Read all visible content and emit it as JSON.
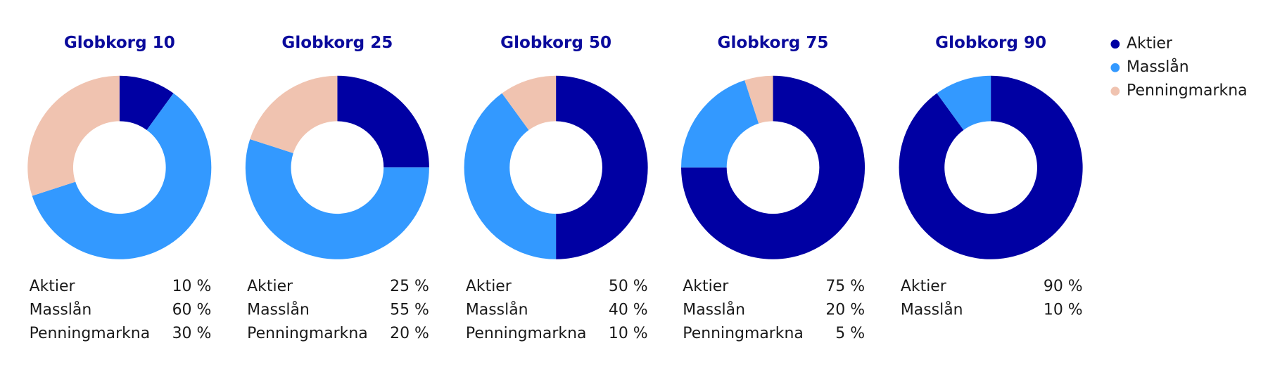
{
  "chart_data": [
    {
      "type": "pie",
      "title": "Globkorg 10",
      "categories": [
        "Aktier",
        "Masslån",
        "Penningmarkna"
      ],
      "values": [
        10,
        60,
        30
      ],
      "value_labels": [
        "10 %",
        "60 %",
        "30 %"
      ],
      "colors": [
        "#0000a3",
        "#3399ff",
        "#f0c3b0"
      ],
      "donut": true
    },
    {
      "type": "pie",
      "title": "Globkorg 25",
      "categories": [
        "Aktier",
        "Masslån",
        "Penningmarkna"
      ],
      "values": [
        25,
        55,
        20
      ],
      "value_labels": [
        "25 %",
        "55 %",
        "20 %"
      ],
      "colors": [
        "#0000a3",
        "#3399ff",
        "#f0c3b0"
      ],
      "donut": true
    },
    {
      "type": "pie",
      "title": "Globkorg 50",
      "categories": [
        "Aktier",
        "Masslån",
        "Penningmarkna"
      ],
      "values": [
        50,
        40,
        10
      ],
      "value_labels": [
        "50 %",
        "40 %",
        "10 %"
      ],
      "colors": [
        "#0000a3",
        "#3399ff",
        "#f0c3b0"
      ],
      "donut": true
    },
    {
      "type": "pie",
      "title": "Globkorg 75",
      "categories": [
        "Aktier",
        "Masslån",
        "Penningmarkna"
      ],
      "values": [
        75,
        20,
        5
      ],
      "value_labels": [
        "75 %",
        "20 %",
        "5 %"
      ],
      "colors": [
        "#0000a3",
        "#3399ff",
        "#f0c3b0"
      ],
      "donut": true
    },
    {
      "type": "pie",
      "title": "Globkorg 90",
      "categories": [
        "Aktier",
        "Masslån"
      ],
      "values": [
        90,
        10
      ],
      "value_labels": [
        "90 %",
        "10 %"
      ],
      "colors": [
        "#0000a3",
        "#3399ff"
      ],
      "donut": true
    }
  ]
}
